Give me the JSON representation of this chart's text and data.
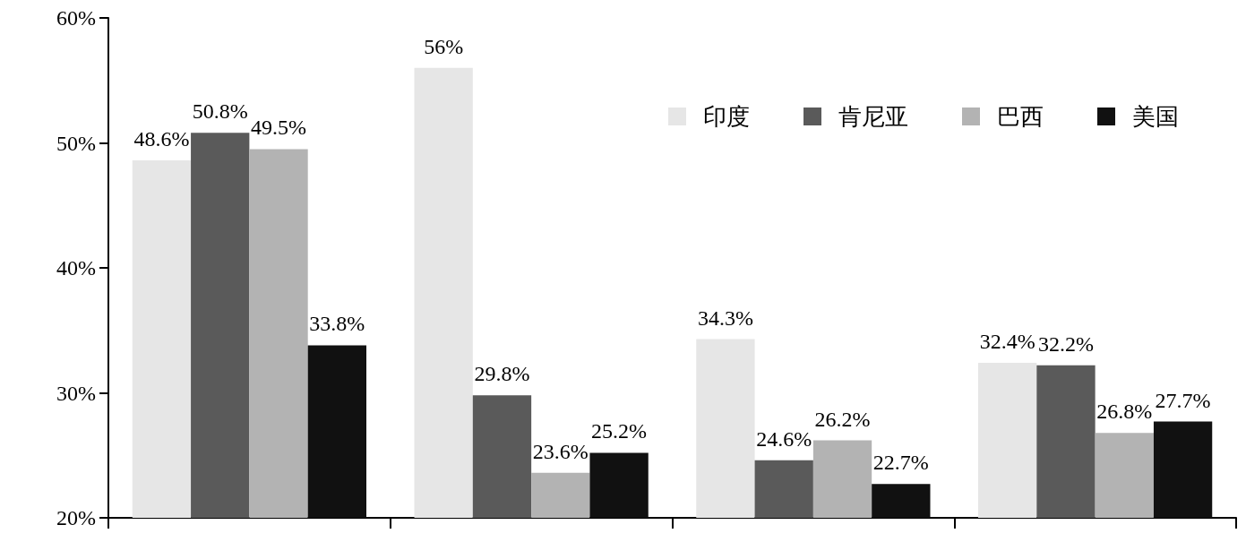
{
  "chart_data": {
    "type": "bar",
    "categories": [
      null,
      null,
      null,
      null
    ],
    "series": [
      {
        "name": "印度",
        "color": "#e6e6e6",
        "values": [
          48.6,
          56,
          34.3,
          32.4
        ],
        "value_labels": [
          "48.6%",
          "56%",
          "34.3%",
          "32.4%"
        ]
      },
      {
        "name": "肯尼亚",
        "color": "#5a5a5a",
        "values": [
          50.8,
          29.8,
          24.6,
          32.2
        ],
        "value_labels": [
          "50.8%",
          "29.8%",
          "24.6%",
          "32.2%"
        ]
      },
      {
        "name": "巴西",
        "color": "#b3b3b3",
        "values": [
          49.5,
          23.6,
          26.2,
          26.8
        ],
        "value_labels": [
          "49.5%",
          "23.6%",
          "26.2%",
          "26.8%"
        ]
      },
      {
        "name": "美国",
        "color": "#111111",
        "values": [
          33.8,
          25.2,
          22.7,
          27.7
        ],
        "value_labels": [
          "33.8%",
          "25.2%",
          "22.7%",
          "27.7%"
        ]
      }
    ],
    "ylim": [
      20,
      60
    ],
    "yticks": [
      {
        "value": 20,
        "label": "20%"
      },
      {
        "value": 30,
        "label": "30%"
      },
      {
        "value": 40,
        "label": "40%"
      },
      {
        "value": 50,
        "label": "50%"
      },
      {
        "value": 60,
        "label": "60%"
      }
    ],
    "grid": false,
    "legend": "top right"
  }
}
